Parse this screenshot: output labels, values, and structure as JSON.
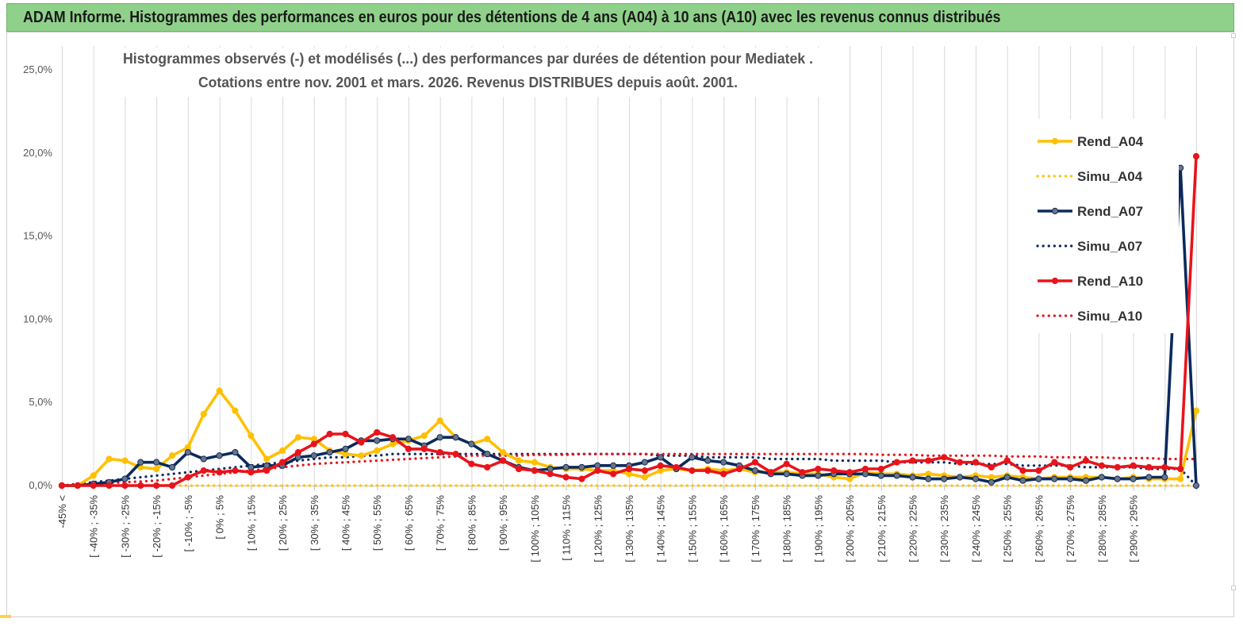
{
  "header": {
    "title": "ADAM Informe. Histogrammes des performances en euros pour des détentions de 4 ans (A04) à 10 ans (A10) avec les revenus connus distribués"
  },
  "chart_data": {
    "type": "line",
    "subtitle_lines": [
      "Histogrammes observés (-) et modélisés (...)  des performances par durées de détention pour Mediatek .",
      "Cotations entre nov. 2001 et mars. 2026. Revenus DISTRIBUES depuis août. 2001."
    ],
    "y_ticks": [
      "0,0%",
      "5,0%",
      "10,0%",
      "15,0%",
      "20,0%",
      "25,0%"
    ],
    "ylim": [
      0,
      25
    ],
    "grid": "vertical",
    "legend_position": "right",
    "x_labels": [
      "-45% <",
      "[ -40% ; -35%",
      "[ -30% ; -25%",
      "[ -20% ; -15%",
      "[ -10% ; -5%",
      "[ 0% ; 5%",
      "[ 10% ; 15%",
      "[ 20% ; 25%",
      "[ 30% ; 35%",
      "[ 40% ; 45%",
      "[ 50% ; 55%",
      "[ 60% ; 65%",
      "[ 70% ; 75%",
      "[ 80% ; 85%",
      "[ 90% ; 95%",
      "[ 100% ; 105%",
      "[ 110% ; 115%",
      "[ 120% ; 125%",
      "[ 130% ; 135%",
      "[ 140% ; 145%",
      "[ 150% ; 155%",
      "[ 160% ; 165%",
      "[ 170% ; 175%",
      "[ 180% ; 185%",
      "[ 190% ; 195%",
      "[ 200% ; 205%",
      "[ 210% ; 215%",
      "[ 220% ; 225%",
      "[ 230% ; 235%",
      "[ 240% ; 245%",
      "[ 250% ; 255%",
      "[ 260% ; 265%",
      "[ 270% ; 275%",
      "[ 280% ; 285%",
      "[ 290% ; 295%"
    ],
    "series": [
      {
        "name": "Rend_A04",
        "style": "solid",
        "color": "#ffc000",
        "values": [
          0.0,
          0.0,
          0.6,
          1.6,
          1.5,
          1.1,
          1.0,
          1.8,
          2.3,
          4.3,
          5.7,
          4.5,
          3.0,
          1.6,
          2.1,
          2.9,
          2.8,
          2.1,
          1.9,
          1.8,
          2.1,
          2.5,
          2.7,
          3.0,
          3.9,
          2.9,
          2.5,
          2.8,
          2.0,
          1.5,
          1.4,
          1.1,
          1.0,
          1.0,
          0.9,
          0.9,
          0.7,
          0.5,
          0.9,
          1.0,
          0.9,
          1.0,
          0.9,
          1.0,
          0.8,
          0.8,
          0.8,
          0.7,
          0.7,
          0.5,
          0.4,
          0.8,
          0.7,
          0.7,
          0.6,
          0.7,
          0.6,
          0.5,
          0.6,
          0.5,
          0.6,
          0.5,
          0.4,
          0.5,
          0.5,
          0.5,
          0.5,
          0.4,
          0.5,
          0.4,
          0.4,
          0.4,
          4.5
        ]
      },
      {
        "name": "Simu_A04",
        "style": "dotted",
        "color": "#ffc000",
        "values": [
          0.0,
          0.0,
          0.0,
          0.0,
          0.0,
          0.0,
          0.0,
          0.0,
          0.0,
          0.0,
          0.0,
          0.0,
          0.0,
          0.0,
          0.0,
          0.0,
          0.0,
          0.0,
          0.0,
          0.0,
          0.0,
          0.0,
          0.0,
          0.0,
          0.0,
          0.0,
          0.0,
          0.0,
          0.0,
          0.0,
          0.0,
          0.0,
          0.0,
          0.0,
          0.0,
          0.0,
          0.0,
          0.0,
          0.0,
          0.0,
          0.0,
          0.0,
          0.0,
          0.0,
          0.0,
          0.0,
          0.0,
          0.0,
          0.0,
          0.0,
          0.0,
          0.0,
          0.0,
          0.0,
          0.0,
          0.0,
          0.0,
          0.0,
          0.0,
          0.0,
          0.0,
          0.0,
          0.0,
          0.0,
          0.0,
          0.0,
          0.0,
          0.0,
          0.0,
          0.0,
          0.0,
          0.0,
          0.0
        ]
      },
      {
        "name": "Rend_A07",
        "style": "solid",
        "color": "#0b2a5c",
        "values": [
          0.0,
          0.0,
          0.1,
          0.2,
          0.4,
          1.4,
          1.4,
          1.1,
          2.0,
          1.6,
          1.8,
          2.0,
          1.1,
          1.2,
          1.2,
          1.7,
          1.8,
          2.0,
          2.2,
          2.7,
          2.7,
          2.8,
          2.8,
          2.4,
          2.9,
          2.9,
          2.5,
          1.9,
          1.5,
          1.1,
          0.9,
          1.0,
          1.1,
          1.1,
          1.2,
          1.2,
          1.2,
          1.4,
          1.7,
          1.0,
          1.7,
          1.5,
          1.4,
          1.2,
          0.9,
          0.7,
          0.7,
          0.6,
          0.6,
          0.7,
          0.7,
          0.7,
          0.6,
          0.6,
          0.5,
          0.4,
          0.4,
          0.5,
          0.4,
          0.2,
          0.5,
          0.3,
          0.4,
          0.4,
          0.4,
          0.3,
          0.5,
          0.4,
          0.4,
          0.5,
          0.5,
          19.1,
          0.0
        ]
      },
      {
        "name": "Simu_A07",
        "style": "dotted",
        "color": "#0b2a5c",
        "values": [
          0.0,
          0.1,
          0.2,
          0.3,
          0.4,
          0.5,
          0.6,
          0.7,
          0.8,
          0.9,
          1.0,
          1.1,
          1.2,
          1.3,
          1.4,
          1.5,
          1.6,
          1.7,
          1.7,
          1.8,
          1.8,
          1.9,
          1.9,
          1.9,
          1.9,
          1.9,
          1.9,
          1.9,
          1.9,
          1.9,
          1.9,
          1.9,
          1.9,
          1.9,
          1.9,
          1.9,
          1.9,
          1.9,
          1.8,
          1.8,
          1.8,
          1.7,
          1.7,
          1.7,
          1.7,
          1.6,
          1.6,
          1.6,
          1.6,
          1.5,
          1.5,
          1.5,
          1.5,
          1.4,
          1.4,
          1.4,
          1.4,
          1.3,
          1.3,
          1.3,
          1.3,
          1.2,
          1.2,
          1.2,
          1.2,
          1.1,
          1.1,
          1.1,
          1.1,
          1.0,
          1.0,
          1.0,
          0.0
        ]
      },
      {
        "name": "Rend_A10",
        "style": "solid",
        "color": "#e8141b",
        "values": [
          0.0,
          0.0,
          0.0,
          0.0,
          0.0,
          0.0,
          0.0,
          0.0,
          0.5,
          0.9,
          0.8,
          0.9,
          0.8,
          0.9,
          1.4,
          2.0,
          2.5,
          3.1,
          3.1,
          2.6,
          3.2,
          2.9,
          2.2,
          2.2,
          2.0,
          1.9,
          1.3,
          1.1,
          1.5,
          1.0,
          0.9,
          0.7,
          0.5,
          0.4,
          0.9,
          0.7,
          1.0,
          0.9,
          1.2,
          1.1,
          0.9,
          0.9,
          0.7,
          1.0,
          1.4,
          0.8,
          1.3,
          0.8,
          1.0,
          0.9,
          0.8,
          1.0,
          1.0,
          1.4,
          1.5,
          1.5,
          1.7,
          1.4,
          1.4,
          1.1,
          1.5,
          0.9,
          0.9,
          1.4,
          1.1,
          1.5,
          1.2,
          1.1,
          1.2,
          1.1,
          1.1,
          1.0,
          19.8
        ]
      },
      {
        "name": "Simu_A10",
        "style": "dotted",
        "color": "#e8141b",
        "values": [
          0.0,
          0.05,
          0.1,
          0.15,
          0.2,
          0.25,
          0.3,
          0.4,
          0.5,
          0.6,
          0.7,
          0.8,
          0.9,
          1.0,
          1.1,
          1.2,
          1.3,
          1.35,
          1.4,
          1.45,
          1.5,
          1.55,
          1.6,
          1.65,
          1.7,
          1.75,
          1.8,
          1.8,
          1.8,
          1.8,
          1.85,
          1.85,
          1.85,
          1.9,
          1.9,
          1.9,
          1.9,
          1.9,
          1.9,
          1.9,
          1.9,
          1.9,
          1.9,
          1.9,
          1.9,
          1.9,
          1.9,
          1.9,
          1.9,
          1.9,
          1.9,
          1.9,
          1.85,
          1.85,
          1.85,
          1.8,
          1.8,
          1.8,
          1.8,
          1.8,
          1.75,
          1.75,
          1.75,
          1.7,
          1.7,
          1.7,
          1.7,
          1.65,
          1.65,
          1.65,
          1.6,
          1.6,
          1.6
        ]
      }
    ]
  },
  "colors": {
    "banner_bg": "#8fd18a",
    "grid": "#d9d9d9",
    "axis": "#bfbfbf"
  }
}
